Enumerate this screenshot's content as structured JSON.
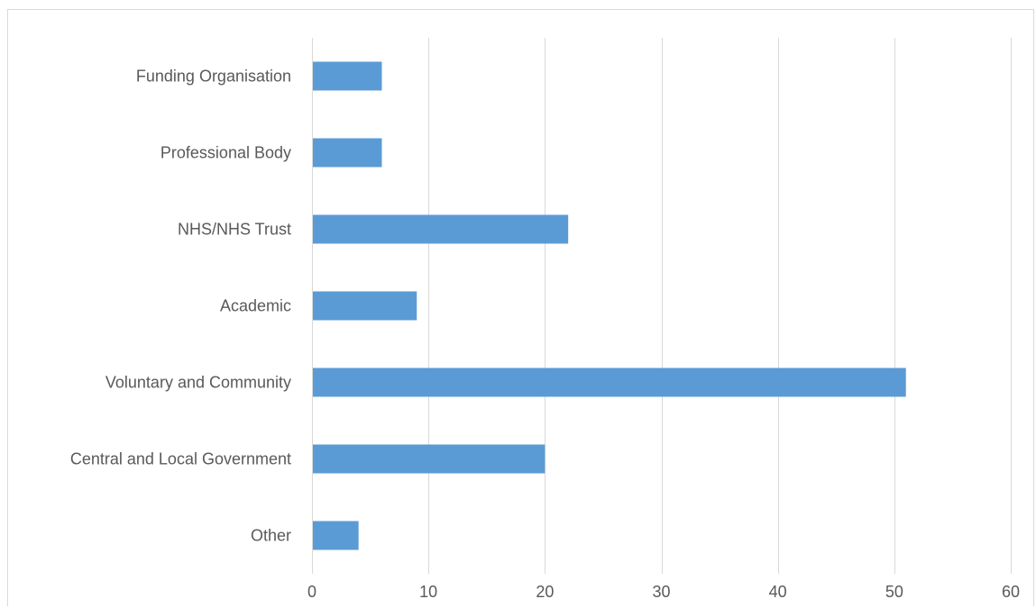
{
  "chart_data": {
    "type": "bar",
    "orientation": "horizontal",
    "categories": [
      "Funding Organisation",
      "Professional Body",
      "NHS/NHS Trust",
      "Academic",
      "Voluntary and Community",
      "Central and Local Government",
      "Other"
    ],
    "values": [
      6,
      6,
      22,
      9,
      51,
      20,
      4
    ],
    "xlim": [
      0,
      60
    ],
    "xticks": [
      "0",
      "10",
      "20",
      "30",
      "40",
      "50",
      "60"
    ],
    "grid": true,
    "bar_color": "#5b9bd5",
    "grid_color": "#d9d9d9",
    "title": "",
    "xlabel": "",
    "ylabel": ""
  }
}
